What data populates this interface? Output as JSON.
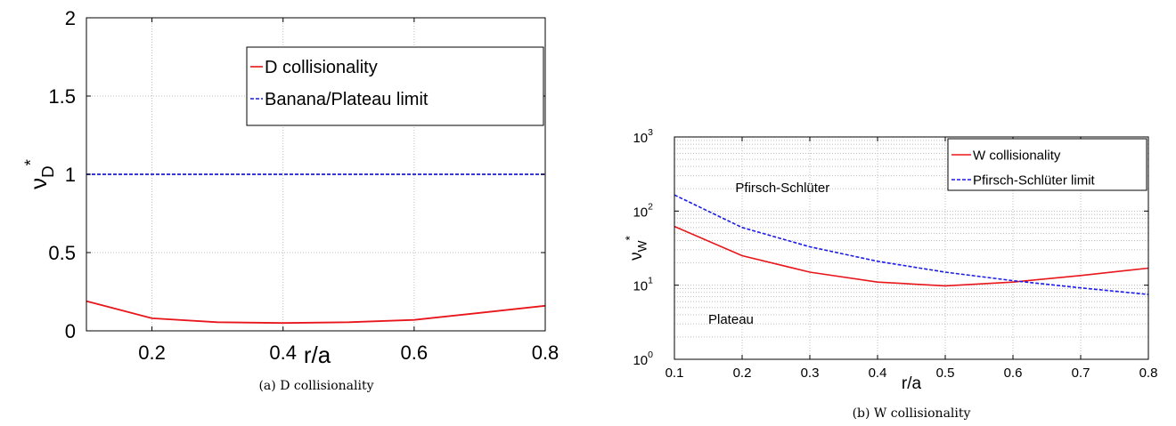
{
  "chart_data": [
    {
      "type": "line",
      "caption": "(a) D collisionality",
      "xlabel": "r/a",
      "ylabel": "ν",
      "ylabel_sub": "D",
      "ylabel_sup": "*",
      "xlim": [
        0.1,
        0.8
      ],
      "ylim": [
        0,
        2
      ],
      "yscale": "linear",
      "grid": true,
      "legend_position": "top-right",
      "xticks": [
        0.2,
        0.4,
        0.6,
        0.8
      ],
      "xtick_labels": [
        "0.2",
        "0.4",
        "0.6",
        "0.8"
      ],
      "yticks": [
        0,
        0.5,
        1,
        1.5,
        2
      ],
      "ytick_labels": [
        "0",
        "0.5",
        "1",
        "1.5",
        "2"
      ],
      "series": [
        {
          "name": "D collisionality",
          "color": "#e8161b",
          "dash": "solid",
          "x": [
            0.1,
            0.2,
            0.3,
            0.4,
            0.5,
            0.6,
            0.7,
            0.8
          ],
          "y": [
            0.19,
            0.08,
            0.055,
            0.05,
            0.055,
            0.07,
            0.115,
            0.16
          ]
        },
        {
          "name": "Banana/Plateau limit",
          "color": "#1a1ae6",
          "dash": "dashed",
          "x": [
            0.1,
            0.8
          ],
          "y": [
            1.0,
            1.0
          ]
        }
      ]
    },
    {
      "type": "line",
      "caption": "(b) W collisionality",
      "xlabel": "r/a",
      "ylabel": "ν",
      "ylabel_sub": "W",
      "ylabel_sup": "*",
      "xlim": [
        0.1,
        0.8
      ],
      "ylim": [
        1,
        1000
      ],
      "yscale": "log",
      "grid": true,
      "legend_position": "top-right",
      "xticks": [
        0.1,
        0.2,
        0.3,
        0.4,
        0.5,
        0.6,
        0.7,
        0.8
      ],
      "xtick_labels": [
        "0.1",
        "0.2",
        "0.3",
        "0.4",
        "0.5",
        "0.6",
        "0.7",
        "0.8"
      ],
      "yticks": [
        1,
        10,
        100,
        1000
      ],
      "ytick_labels": [
        {
          "base": "10",
          "exp": "0"
        },
        {
          "base": "10",
          "exp": "1"
        },
        {
          "base": "10",
          "exp": "2"
        },
        {
          "base": "10",
          "exp": "3"
        }
      ],
      "annotations": [
        {
          "text": "Pfirsch-Schlüter",
          "x": 0.19,
          "y": 180
        },
        {
          "text": "Plateau",
          "x": 0.15,
          "y": 3
        }
      ],
      "series": [
        {
          "name": "W collisionality",
          "color": "#e8161b",
          "dash": "solid",
          "x": [
            0.1,
            0.2,
            0.3,
            0.4,
            0.5,
            0.6,
            0.7,
            0.8
          ],
          "y": [
            62,
            25,
            15,
            11,
            9.8,
            11,
            13.5,
            17
          ]
        },
        {
          "name": "Pfirsch-Schlüter limit",
          "color": "#1a1ae6",
          "dash": "dashed",
          "x": [
            0.1,
            0.2,
            0.3,
            0.4,
            0.5,
            0.6,
            0.7,
            0.8
          ],
          "y": [
            165,
            60,
            33,
            21,
            15,
            11.5,
            9.2,
            7.5
          ]
        }
      ]
    }
  ]
}
